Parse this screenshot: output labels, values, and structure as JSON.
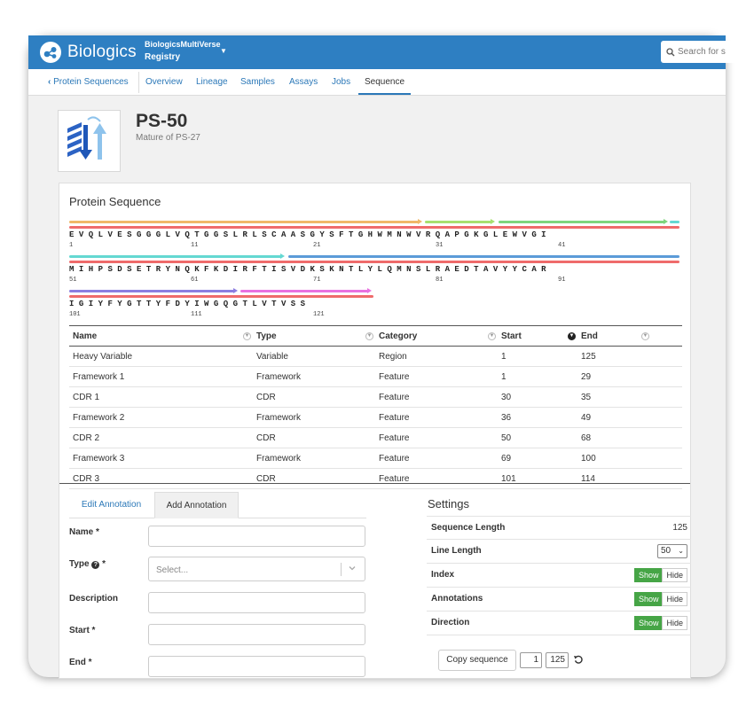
{
  "app": {
    "name": "Biologics",
    "project_line1": "BiologicsMultiVerse",
    "project_line2": "Registry",
    "search_placeholder": "Search for s"
  },
  "nav": {
    "back": "Protein Sequences",
    "tabs": [
      "Overview",
      "Lineage",
      "Samples",
      "Assays",
      "Jobs",
      "Sequence"
    ],
    "active": "Sequence"
  },
  "entity": {
    "title": "PS-50",
    "subtitle": "Mature of PS-27"
  },
  "sequence": {
    "title": "Protein Sequence",
    "lines": [
      {
        "text": "EVQLVESGGGLVQTGGSLRLSCAASGYSFTGHWMNWVRQAPGKGLEWVGI",
        "indices": [
          "1",
          "11",
          "21",
          "31",
          "41"
        ]
      },
      {
        "text": "MIHPSDSETRYNQKFKDIRFTISVDKSKNTLYLQMNSLRAEDTAVYYCAR",
        "indices": [
          "51",
          "61",
          "71",
          "81",
          "91"
        ]
      },
      {
        "text": "IGIYFYGTTYFDYIWGQGTLVTVSS",
        "indices": [
          "101",
          "111",
          "121"
        ]
      }
    ]
  },
  "table": {
    "columns": [
      "Name",
      "Type",
      "Category",
      "Start",
      "End"
    ],
    "rows": [
      [
        "Heavy Variable",
        "Variable",
        "Region",
        "1",
        "125"
      ],
      [
        "Framework 1",
        "Framework",
        "Feature",
        "1",
        "29"
      ],
      [
        "CDR 1",
        "CDR",
        "Feature",
        "30",
        "35"
      ],
      [
        "Framework 2",
        "Framework",
        "Feature",
        "36",
        "49"
      ],
      [
        "CDR 2",
        "CDR",
        "Feature",
        "50",
        "68"
      ],
      [
        "Framework 3",
        "Framework",
        "Feature",
        "69",
        "100"
      ],
      [
        "CDR 3",
        "CDR",
        "Feature",
        "101",
        "114"
      ]
    ]
  },
  "annotation": {
    "tabs": [
      "Edit Annotation",
      "Add Annotation"
    ],
    "active_tab": "Add Annotation",
    "fields": {
      "name": "Name *",
      "type": "Type",
      "type_req": "*",
      "type_placeholder": "Select...",
      "description": "Description",
      "start": "Start *",
      "end": "End *"
    }
  },
  "settings": {
    "title": "Settings",
    "seq_length_label": "Sequence Length",
    "seq_length": "125",
    "line_length_label": "Line Length",
    "line_length": "50",
    "index_label": "Index",
    "annotations_label": "Annotations",
    "direction_label": "Direction",
    "show": "Show",
    "hide": "Hide",
    "copy_button": "Copy sequence",
    "range_start": "1",
    "range_end": "125"
  },
  "colors": {
    "brand": "#2e7fc2",
    "link": "#2b78b8",
    "toggle_on": "#46a546",
    "heavy_variable": "#ef6b6b",
    "framework_1": "#f0b868",
    "cdr_1": "#a8e070",
    "framework_2": "#7ed67e",
    "cdr_2": "#64d8d2",
    "framework_3": "#5b9bd8",
    "cdr_3": "#8c7ee0",
    "framework_4": "#e872e0"
  }
}
